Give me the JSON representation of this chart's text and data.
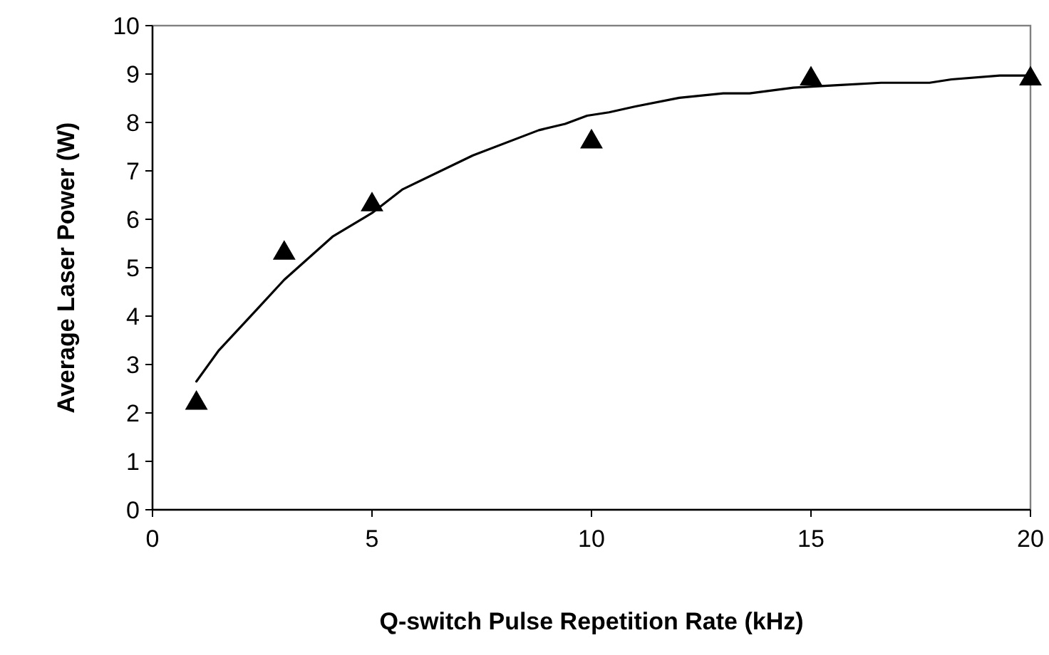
{
  "chart_data": {
    "type": "scatter",
    "xlabel": "Q-switch Pulse Repetition Rate (kHz)",
    "ylabel": "Average Laser Power (W)",
    "xlim": [
      0,
      20
    ],
    "xticks": [
      0,
      5,
      10,
      15,
      20
    ],
    "ylim": [
      0,
      10
    ],
    "yticks": [
      0,
      1,
      2,
      3,
      4,
      5,
      6,
      7,
      8,
      9,
      10
    ],
    "grid": false,
    "series": [
      {
        "color": "#000000",
        "marker": "triangle",
        "x": [
          1,
          3,
          5,
          10,
          15,
          20
        ],
        "values": [
          2.2,
          5.3,
          6.3,
          7.6,
          8.9,
          8.9
        ]
      },
      {
        "type": "line",
        "color": "#000000",
        "marker": "none",
        "line_style": "solid",
        "x": [
          1,
          1.5,
          2.4,
          3,
          4.1,
          5,
          5.7,
          7.3,
          8.8,
          9.4,
          9.9,
          10.4,
          11,
          12,
          13,
          13.6,
          14.6,
          15.6,
          16.6,
          17.7,
          18.2,
          19.3,
          20
        ],
        "values": [
          2.65,
          3.28,
          4.16,
          4.75,
          5.64,
          6.13,
          6.62,
          7.32,
          7.84,
          7.97,
          8.14,
          8.21,
          8.33,
          8.51,
          8.6,
          8.6,
          8.72,
          8.77,
          8.82,
          8.82,
          8.89,
          8.97,
          8.97
        ]
      }
    ]
  }
}
